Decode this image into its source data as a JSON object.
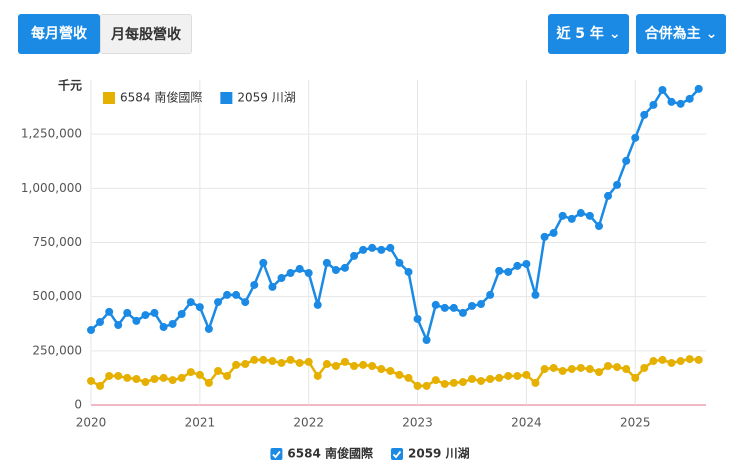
{
  "ui": {
    "tabs": [
      "每月營收",
      "月每股營收"
    ],
    "dropdowns": [
      "近 5 年",
      "合併為主"
    ]
  },
  "chart_data": {
    "type": "line",
    "y_unit": "千元",
    "legend": "upper left",
    "grid": true,
    "x": [
      2020,
      2020.083,
      2020.167,
      2020.25,
      2020.333,
      2020.417,
      2020.5,
      2020.583,
      2020.667,
      2020.75,
      2020.833,
      2020.917,
      2021,
      2021.083,
      2021.167,
      2021.25,
      2021.333,
      2021.417,
      2021.5,
      2021.583,
      2021.667,
      2021.75,
      2021.833,
      2021.917,
      2022,
      2022.083,
      2022.167,
      2022.25,
      2022.333,
      2022.417,
      2022.5,
      2022.583,
      2022.667,
      2022.75,
      2022.833,
      2022.917,
      2023,
      2023.083,
      2023.167,
      2023.25,
      2023.333,
      2023.417,
      2023.5,
      2023.583,
      2023.667,
      2023.75,
      2023.833,
      2023.917,
      2024,
      2024.083,
      2024.167,
      2024.25,
      2024.333,
      2024.417,
      2024.5,
      2024.583,
      2024.667,
      2024.75,
      2024.833,
      2024.917,
      2025,
      2025.083,
      2025.167,
      2025.25,
      2025.333,
      2025.417,
      2025.5,
      2025.583
    ],
    "xlim": [
      2020,
      2025.65
    ],
    "xticks": [
      2020,
      2021,
      2022,
      2023,
      2024,
      2025
    ],
    "ylim": [
      0,
      1500000
    ],
    "yticks": [
      0,
      {
        "value": 250000,
        "label": "250,000"
      },
      {
        "value": 500000,
        "label": "500,000"
      },
      {
        "value": 750000,
        "label": "750,000"
      },
      {
        "value": 1000000,
        "label": "1,000,000"
      },
      {
        "value": 1250000,
        "label": "1,250,000"
      }
    ],
    "series": [
      {
        "name": "6584 南俊國際",
        "color": "#e5b000",
        "values": [
          111000,
          88000,
          134000,
          134000,
          125000,
          120000,
          106000,
          120000,
          125000,
          115000,
          125000,
          152000,
          139000,
          102000,
          157000,
          134000,
          185000,
          189000,
          208000,
          208000,
          203000,
          194000,
          208000,
          194000,
          199000,
          134000,
          189000,
          180000,
          199000,
          180000,
          185000,
          180000,
          166000,
          157000,
          139000,
          125000,
          88000,
          88000,
          115000,
          97000,
          102000,
          106000,
          120000,
          111000,
          120000,
          125000,
          134000,
          134000,
          139000,
          102000,
          166000,
          171000,
          157000,
          166000,
          171000,
          166000,
          152000,
          180000,
          175000,
          166000,
          125000,
          171000,
          203000,
          208000,
          194000,
          203000,
          212000,
          208000
        ]
      },
      {
        "name": "2059 川湖",
        "color": "#1a8ae5",
        "values": [
          346000,
          383000,
          430000,
          369000,
          425000,
          388000,
          415000,
          425000,
          360000,
          374000,
          420000,
          475000,
          452000,
          351000,
          475000,
          508000,
          508000,
          475000,
          554000,
          656000,
          545000,
          586000,
          609000,
          628000,
          609000,
          462000,
          656000,
          623000,
          633000,
          688000,
          716000,
          725000,
          716000,
          725000,
          656000,
          614000,
          397000,
          300000,
          462000,
          448000,
          448000,
          425000,
          457000,
          466000,
          508000,
          619000,
          614000,
          642000,
          651000,
          508000,
          776000,
          794000,
          873000,
          859000,
          886000,
          873000,
          826000,
          965000,
          1016000,
          1127000,
          1233000,
          1339000,
          1385000,
          1454000,
          1399000,
          1390000,
          1413000,
          1459000
        ]
      }
    ]
  }
}
